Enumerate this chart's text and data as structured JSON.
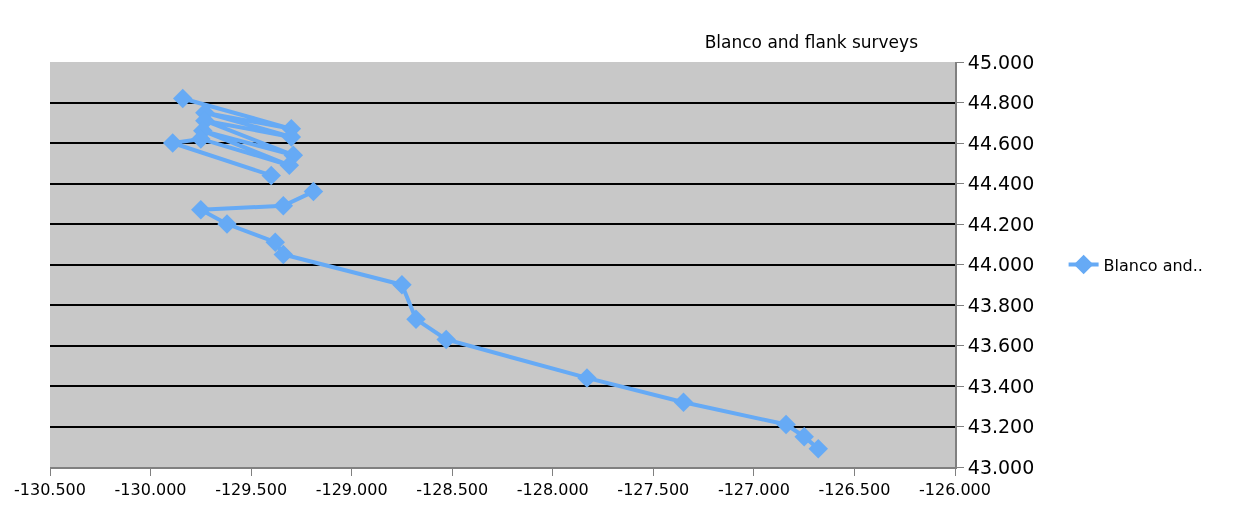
{
  "chart_data": {
    "type": "line",
    "title": "Blanco and flank surveys",
    "series": [
      {
        "name": "Blanco and..",
        "color": "#66aaf5",
        "x": [
          -129.84,
          -129.3,
          -129.73,
          -129.3,
          -129.73,
          -129.29,
          -129.74,
          -129.31,
          -129.75,
          -129.89,
          -129.4,
          null,
          -129.19,
          -129.34,
          -129.75,
          -129.62,
          -129.38,
          -129.34,
          -128.75,
          -128.68,
          -128.53,
          -127.83,
          -127.35,
          -126.84,
          -126.75,
          -126.68
        ],
        "values": [
          44.82,
          44.67,
          44.75,
          44.63,
          44.71,
          44.54,
          44.66,
          44.49,
          44.62,
          44.6,
          44.44,
          null,
          44.36,
          44.29,
          44.27,
          44.2,
          44.11,
          44.05,
          43.9,
          43.73,
          43.63,
          43.44,
          43.32,
          43.21,
          43.15,
          43.09
        ]
      }
    ],
    "xlim": [
      -130.5,
      -126.0
    ],
    "xticks": [
      {
        "value": -130.5,
        "label": "-130.500"
      },
      {
        "value": -130.0,
        "label": "-130.000"
      },
      {
        "value": -129.5,
        "label": "-129.500"
      },
      {
        "value": -129.0,
        "label": "-129.000"
      },
      {
        "value": -128.5,
        "label": "-128.500"
      },
      {
        "value": -128.0,
        "label": "-128.000"
      },
      {
        "value": -127.5,
        "label": "-127.500"
      },
      {
        "value": -127.0,
        "label": "-127.000"
      },
      {
        "value": -126.5,
        "label": "-126.500"
      },
      {
        "value": -126.0,
        "label": "-126.000"
      }
    ],
    "ylim": [
      43.0,
      45.0
    ],
    "yticks": [
      {
        "value": 43.0,
        "label": "43.000"
      },
      {
        "value": 43.2,
        "label": "43.200"
      },
      {
        "value": 43.4,
        "label": "43.400"
      },
      {
        "value": 43.6,
        "label": "43.600"
      },
      {
        "value": 43.8,
        "label": "43.800"
      },
      {
        "value": 44.0,
        "label": "44.000"
      },
      {
        "value": 44.2,
        "label": "44.200"
      },
      {
        "value": 44.4,
        "label": "44.400"
      },
      {
        "value": 44.6,
        "label": "44.600"
      },
      {
        "value": 44.8,
        "label": "44.800"
      },
      {
        "value": 45.0,
        "label": "45.000"
      }
    ],
    "grid": "y",
    "legend": "right",
    "marker": "diamond",
    "line_style": "solid"
  }
}
